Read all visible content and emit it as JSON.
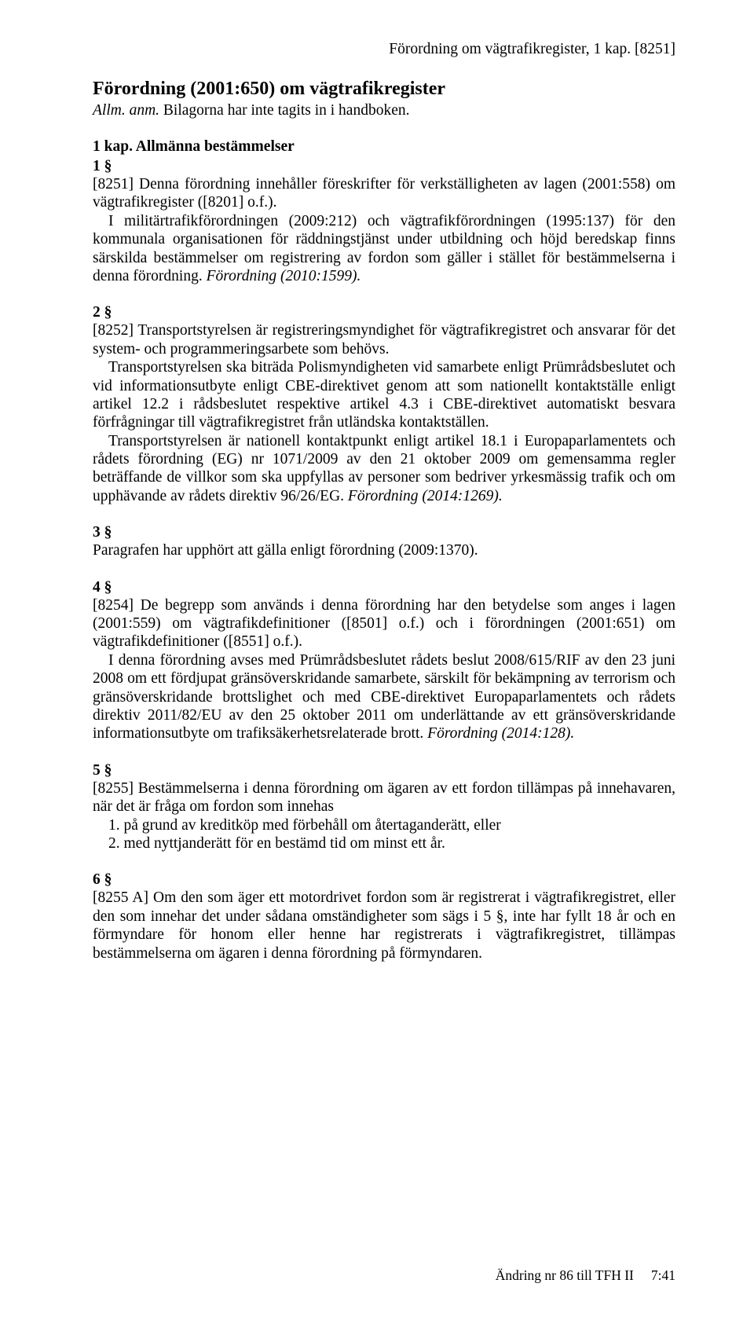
{
  "header_right": "Förordning om vägtrafikregister, 1 kap. [8251]",
  "title": "Förordning (2001:650) om vägtrafikregister",
  "subtitle_prefix": "Allm. anm.",
  "subtitle_text": " Bilagorna har inte tagits in i handboken.",
  "chapter": "1 kap. Allmänna bestämmelser",
  "s1": {
    "num": "1 §",
    "p1": "[8251] Denna förordning innehåller föreskrifter för verkställigheten av lagen (2001:558) om vägtrafikregister ([8201] o.f.).",
    "p2": "I militärtrafikförordningen (2009:212) och vägtrafikförordningen (1995:137) för den kommunala organisationen för räddningstjänst under utbildning och höjd beredskap finns särskilda bestämmelser om registrering av fordon som gäller i stället för bestämmelserna i denna förordning. ",
    "p2_italic": "Förordning (2010:1599)."
  },
  "s2": {
    "num": "2 §",
    "p1": "[8252] Transportstyrelsen är registreringsmyndighet för vägtrafikregistret och ansvarar för det system- och programmeringsarbete som behövs.",
    "p2": "Transportstyrelsen ska biträda Polismyndigheten vid samarbete enligt Prümrådsbeslutet och vid informationsutbyte enligt CBE-direktivet genom att som nationellt kontaktställe enligt artikel 12.2 i rådsbeslutet respektive artikel 4.3 i CBE-direktivet automatiskt besvara förfrågningar till vägtrafikregistret från utländska kontaktställen.",
    "p3": "Transportstyrelsen är nationell kontaktpunkt enligt artikel 18.1 i Europaparlamentets och rådets förordning (EG) nr 1071/2009 av den 21 oktober 2009 om gemensamma regler beträffande de villkor som ska uppfyllas av personer som bedriver yrkesmässig trafik och om upphävande av rådets direktiv 96/26/EG. ",
    "p3_italic": "Förordning (2014:1269)."
  },
  "s3": {
    "num": "3 §",
    "p1": "Paragrafen har upphört att gälla enligt förordning (2009:1370)."
  },
  "s4": {
    "num": "4 §",
    "p1": "[8254] De begrepp som används i denna förordning har den betydelse som anges i lagen (2001:559) om vägtrafikdefinitioner ([8501] o.f.) och i förordningen (2001:651) om vägtrafikdefinitioner ([8551] o.f.).",
    "p2": "I denna förordning avses med Prümrådsbeslutet rådets beslut 2008/615/RIF av den 23 juni 2008 om ett fördjupat gränsöverskridande samarbete, särskilt för bekämpning av terrorism och gränsöverskridande brottslighet och med CBE-direktivet Europaparlamentets och rådets direktiv 2011/82/EU av den 25 oktober 2011 om underlättande av ett gränsöverskridande informationsutbyte om trafiksäkerhetsrelaterade brott. ",
    "p2_italic": "Förordning (2014:128)."
  },
  "s5": {
    "num": "5 §",
    "p1": "[8255] Bestämmelserna i denna förordning om ägaren av ett fordon tillämpas på innehavaren, när det är fråga om fordon som innehas",
    "li1": "1. på grund av kreditköp med förbehåll om återtaganderätt, eller",
    "li2": "2. med nyttjanderätt för en bestämd tid om minst ett år."
  },
  "s6": {
    "num": "6 §",
    "p1": "[8255 A] Om den som äger ett motordrivet fordon som är registrerat i vägtrafikregistret, eller den som innehar det under sådana omständigheter som sägs i 5 §, inte har fyllt 18 år och en förmyndare för honom eller henne har registrerats i vägtrafikregistret, tillämpas bestämmelserna om ägaren i denna förordning på förmyndaren."
  },
  "footer": {
    "change": "Ändring nr 86 till TFH II",
    "page": "7:41"
  }
}
